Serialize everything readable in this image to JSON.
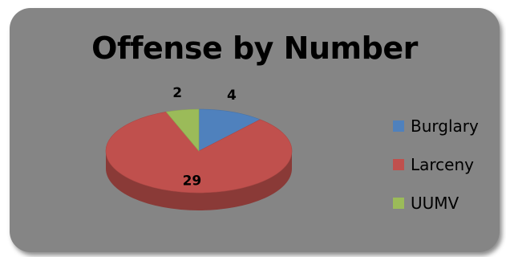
{
  "chart_data": {
    "type": "pie",
    "title": "Offense by Number",
    "categories": [
      "Burglary",
      "Larceny",
      "UUMV"
    ],
    "values": [
      4,
      29,
      2
    ],
    "colors": [
      "#4f81bd",
      "#c0504d",
      "#9bbb59"
    ],
    "legend_position": "right",
    "style": "3d"
  }
}
